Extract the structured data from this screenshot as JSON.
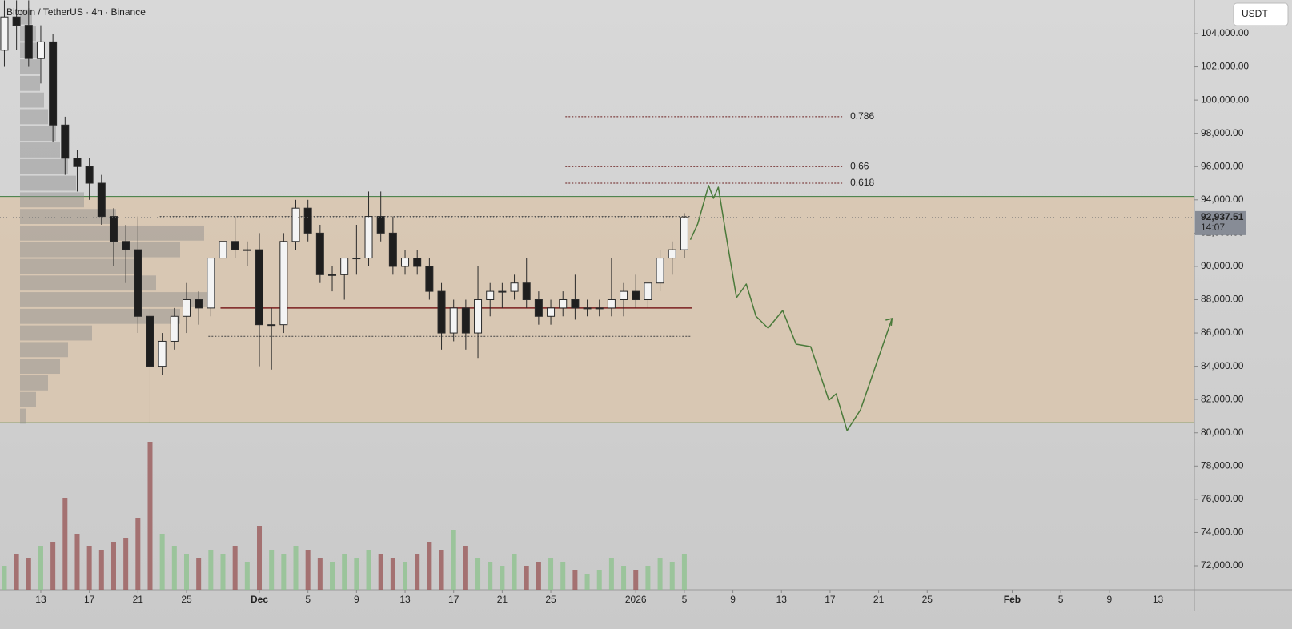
{
  "chart_data": {
    "type": "candlestick",
    "title": "Bitcoin / TetherUS · 4h · Binance",
    "currency": "USDT",
    "xlim": [
      -21.36,
      77.0
    ],
    "ylim": [
      70556,
      106021
    ],
    "xticks": [
      {
        "value": -18,
        "label": "13"
      },
      {
        "value": -14,
        "label": "17"
      },
      {
        "value": -10,
        "label": "21"
      },
      {
        "value": -6,
        "label": "25"
      },
      {
        "value": 0,
        "label": "Dec"
      },
      {
        "value": 4,
        "label": "5"
      },
      {
        "value": 8,
        "label": "9"
      },
      {
        "value": 12,
        "label": "13"
      },
      {
        "value": 16,
        "label": "17"
      },
      {
        "value": 20,
        "label": "21"
      },
      {
        "value": 24,
        "label": "25"
      },
      {
        "value": 31,
        "label": "2026"
      },
      {
        "value": 35,
        "label": "5"
      },
      {
        "value": 39,
        "label": "9"
      },
      {
        "value": 43,
        "label": "13"
      },
      {
        "value": 47,
        "label": "17"
      },
      {
        "value": 51,
        "label": "21"
      },
      {
        "value": 55,
        "label": "25"
      },
      {
        "value": 62,
        "label": "Feb"
      },
      {
        "value": 66,
        "label": "5"
      },
      {
        "value": 70,
        "label": "9"
      },
      {
        "value": 74,
        "label": "13"
      }
    ],
    "yticks": [
      {
        "value": 72000,
        "label": "72,000.00"
      },
      {
        "value": 74000,
        "label": "74,000.00"
      },
      {
        "value": 76000,
        "label": "76,000.00"
      },
      {
        "value": 78000,
        "label": "78,000.00"
      },
      {
        "value": 80000,
        "label": "80,000.00"
      },
      {
        "value": 82000,
        "label": "82,000.00"
      },
      {
        "value": 84000,
        "label": "84,000.00"
      },
      {
        "value": 86000,
        "label": "86,000.00"
      },
      {
        "value": 88000,
        "label": "88,000.00"
      },
      {
        "value": 90000,
        "label": "90,000.00"
      },
      {
        "value": 92000,
        "label": "92,000.00"
      },
      {
        "value": 94000,
        "label": "94,000.00"
      },
      {
        "value": 96000,
        "label": "96,000.00"
      },
      {
        "value": 98000,
        "label": "98,000.00"
      },
      {
        "value": 100000,
        "label": "100,000.00"
      },
      {
        "value": 102000,
        "label": "102,000.00"
      },
      {
        "value": 104000,
        "label": "104,000.00"
      }
    ],
    "x": [
      -21,
      -20,
      -19,
      -18,
      -17,
      -16,
      -15,
      -14,
      -13,
      -12,
      -11,
      -10,
      -9,
      -8,
      -7,
      -6,
      -5,
      -4,
      -3,
      -2,
      -1,
      0,
      1,
      2,
      3,
      4,
      5,
      6,
      7,
      8,
      9,
      10,
      11,
      12,
      13,
      14,
      15,
      16,
      17,
      18,
      19,
      20,
      21,
      22,
      23,
      24,
      25,
      26,
      27,
      28,
      29,
      30,
      31,
      32,
      33,
      34,
      35
    ],
    "open": [
      103000,
      105000,
      104500,
      102500,
      103500,
      98500,
      96500,
      96000,
      95000,
      93000,
      91500,
      91000,
      87000,
      84000,
      85500,
      87000,
      88000,
      87500,
      90500,
      91500,
      91000,
      91000,
      86500,
      86500,
      91500,
      93500,
      92000,
      89500,
      89500,
      90500,
      90500,
      93000,
      92000,
      90000,
      90500,
      90000,
      88500,
      86000,
      87500,
      86000,
      88000,
      88500,
      88500,
      89000,
      88000,
      87000,
      87500,
      88000,
      87500,
      87500,
      87500,
      88000,
      88500,
      88000,
      89000,
      90500,
      91000
    ],
    "high": [
      106000,
      106000,
      106000,
      104500,
      104000,
      99000,
      97000,
      96500,
      95500,
      93500,
      92500,
      93000,
      87500,
      86000,
      87500,
      89000,
      88500,
      90500,
      92000,
      93000,
      91500,
      92000,
      87500,
      92000,
      94000,
      94000,
      92500,
      90000,
      90500,
      92500,
      94500,
      94500,
      93000,
      91000,
      91000,
      90500,
      89000,
      88000,
      88000,
      90000,
      89000,
      89000,
      89500,
      90500,
      88500,
      88000,
      88500,
      89500,
      88000,
      88000,
      90500,
      89000,
      89500,
      89000,
      91000,
      91500,
      93200
    ],
    "low": [
      102000,
      103000,
      102000,
      101000,
      97500,
      95500,
      94500,
      94000,
      92500,
      90000,
      89000,
      86000,
      80600,
      83500,
      85000,
      86000,
      86500,
      87000,
      90000,
      90500,
      90000,
      84000,
      83800,
      86000,
      91000,
      91500,
      89000,
      88500,
      88000,
      89500,
      90000,
      91500,
      89500,
      89500,
      89500,
      88000,
      85000,
      85500,
      85000,
      84500,
      87000,
      87500,
      88000,
      87500,
      86500,
      86500,
      87000,
      86800,
      87000,
      87000,
      87000,
      87000,
      87500,
      87500,
      88500,
      89500,
      90500
    ],
    "close": [
      105000,
      104500,
      102500,
      103500,
      98500,
      96500,
      96000,
      95000,
      93000,
      91500,
      91000,
      87000,
      84000,
      85500,
      87000,
      88000,
      87500,
      90500,
      91500,
      91000,
      91000,
      86500,
      86500,
      91500,
      93500,
      92000,
      89500,
      89500,
      90500,
      90500,
      93000,
      92000,
      90000,
      90500,
      90000,
      88500,
      86000,
      87500,
      86000,
      88000,
      88500,
      88500,
      89000,
      88000,
      87000,
      87500,
      88000,
      87500,
      87500,
      87500,
      88000,
      88500,
      88000,
      89000,
      90500,
      91000,
      92937.51
    ],
    "volume": [
      30,
      45,
      40,
      55,
      60,
      115,
      70,
      55,
      50,
      60,
      65,
      90,
      185,
      70,
      55,
      45,
      40,
      50,
      45,
      55,
      35,
      80,
      50,
      45,
      55,
      50,
      40,
      35,
      45,
      40,
      50,
      45,
      40,
      35,
      45,
      60,
      50,
      75,
      55,
      40,
      35,
      30,
      45,
      30,
      35,
      40,
      35,
      25,
      20,
      25,
      40,
      30,
      25,
      30,
      40,
      35,
      45
    ],
    "last_price": {
      "value": 92937.51,
      "label": "92,937.51"
    },
    "countdown": "14:07",
    "zone": {
      "top": 94200,
      "bottom": 80600,
      "color": "#d9c6ae"
    },
    "levels": [
      {
        "price": 93000,
        "x_from": -8.2,
        "x_to": 35.5,
        "color": "#444444"
      },
      {
        "price": 87500,
        "x_from": -3.2,
        "x_to": 35.6,
        "color": "#7a1f1f"
      },
      {
        "price": 85800,
        "x_from": -4.2,
        "x_to": 35.5,
        "color": "#444444"
      }
    ],
    "fib": [
      {
        "label": "0.786",
        "price": 99000
      },
      {
        "label": "0.66",
        "price": 96000
      },
      {
        "label": "0.618",
        "price": 95000
      }
    ],
    "fib_range": [
      25.2,
      48.0
    ],
    "projection": {
      "color": "#4a7a3a",
      "x": [
        35.5,
        36.1,
        37.0,
        37.4,
        37.8,
        38.5,
        39.3,
        40.1,
        40.9,
        41.9,
        43.1,
        44.2,
        45.4,
        46.9,
        47.5,
        48.4,
        49.5,
        52.1
      ],
      "y": [
        91600,
        92550,
        94860,
        94090,
        94760,
        91600,
        88120,
        88940,
        87010,
        86290,
        87350,
        85330,
        85180,
        81960,
        82340,
        80130,
        81380,
        86870
      ]
    },
    "volume_profile": {
      "prices": [
        81000,
        82000,
        83000,
        84000,
        85000,
        86000,
        87000,
        88000,
        89000,
        90000,
        91000,
        92000,
        93000,
        94000,
        95000,
        96000,
        97000,
        98000,
        99000,
        100000,
        101000,
        102000,
        103000,
        104000,
        105000
      ],
      "values": [
        8,
        20,
        35,
        50,
        60,
        90,
        200,
        240,
        170,
        150,
        200,
        230,
        120,
        80,
        70,
        60,
        50,
        45,
        35,
        30,
        25,
        25,
        25,
        20,
        15
      ]
    }
  }
}
